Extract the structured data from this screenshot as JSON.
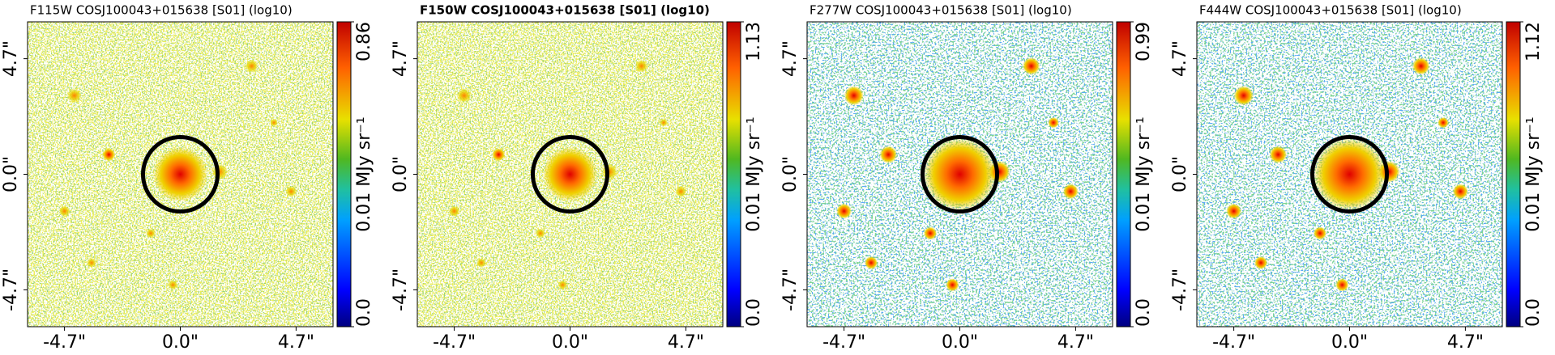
{
  "chart_data": {
    "type": "image",
    "xlim": [
      -6.2,
      6.2
    ],
    "ylim": [
      -6.2,
      6.2
    ],
    "xticks": [
      {
        "value": -4.7,
        "label": "-4.7\""
      },
      {
        "value": 0,
        "label": "0.0\""
      },
      {
        "value": 4.7,
        "label": "4.7\""
      }
    ],
    "yticks": [
      {
        "value": -4.7,
        "label": "-4.7\""
      },
      {
        "value": 0,
        "label": "0.0\""
      },
      {
        "value": 4.7,
        "label": "4.7\""
      }
    ],
    "cbar_label": "0.01 MJy sr⁻¹",
    "panels": [
      {
        "title": "F115W COSJ100043+015638 [S01] (log10)",
        "bold": false,
        "cbar_ticks": [
          {
            "value": 0,
            "label": "0.0"
          },
          0.86
        ]
      },
      {
        "title": "F150W COSJ100043+015638 [S01] (log10)",
        "bold": true,
        "cbar_ticks": [
          {
            "value": 0,
            "label": "0.0"
          },
          1.13
        ]
      },
      {
        "title": "F277W COSJ100043+015638 [S01] (log10)",
        "bold": false,
        "cbar_ticks": [
          {
            "value": 0,
            "label": "0.0"
          },
          0.99
        ]
      },
      {
        "title": "F444W COSJ100043+015638 [S01] (log10)",
        "bold": false,
        "cbar_ticks": [
          {
            "value": 0,
            "label": "0.0"
          },
          1.12
        ]
      }
    ]
  }
}
